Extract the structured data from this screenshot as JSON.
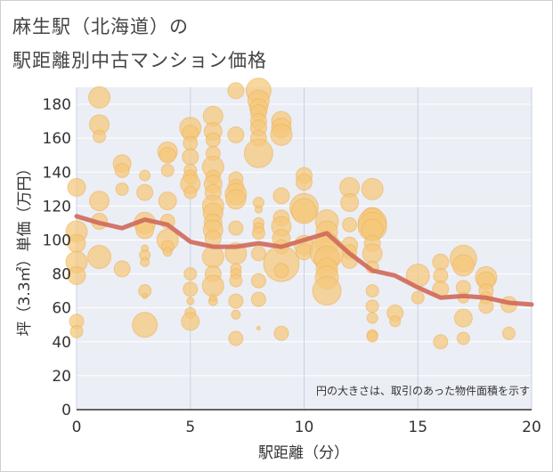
{
  "chart_data": {
    "type": "scatter",
    "title_line1": "麻生駅（北海道）の",
    "title_line2": "駅距離別中古マンション価格",
    "xlabel": "駅距離（分）",
    "ylabel": "坪（3.3㎡）単価（万円）",
    "note": "円の大きさは、取引のあった物件面積を示す",
    "xlim": [
      0,
      20
    ],
    "ylim": [
      0,
      190
    ],
    "xticks": [
      0,
      5,
      10,
      15,
      20
    ],
    "yticks": [
      0,
      20,
      40,
      60,
      80,
      100,
      120,
      140,
      160,
      180
    ],
    "grid": true,
    "bubble_color": "#f5c87a",
    "trend_color": "#d06b5b",
    "points": [
      {
        "x": 0,
        "y": 131,
        "r": 10
      },
      {
        "x": 0,
        "y": 105,
        "r": 12
      },
      {
        "x": 0,
        "y": 98,
        "r": 10
      },
      {
        "x": 0,
        "y": 87,
        "r": 12
      },
      {
        "x": 0,
        "y": 79,
        "r": 10
      },
      {
        "x": 0,
        "y": 52,
        "r": 8
      },
      {
        "x": 0,
        "y": 46,
        "r": 7
      },
      {
        "x": 1,
        "y": 184,
        "r": 12
      },
      {
        "x": 1,
        "y": 168,
        "r": 11
      },
      {
        "x": 1,
        "y": 161,
        "r": 7
      },
      {
        "x": 1,
        "y": 123,
        "r": 11
      },
      {
        "x": 1,
        "y": 111,
        "r": 9
      },
      {
        "x": 1,
        "y": 90,
        "r": 13
      },
      {
        "x": 2,
        "y": 145,
        "r": 10
      },
      {
        "x": 2,
        "y": 141,
        "r": 8
      },
      {
        "x": 2,
        "y": 130,
        "r": 7
      },
      {
        "x": 2,
        "y": 83,
        "r": 9
      },
      {
        "x": 3,
        "y": 138,
        "r": 6
      },
      {
        "x": 3,
        "y": 128,
        "r": 9
      },
      {
        "x": 3,
        "y": 110,
        "r": 12
      },
      {
        "x": 3,
        "y": 106,
        "r": 10
      },
      {
        "x": 3,
        "y": 95,
        "r": 4
      },
      {
        "x": 3,
        "y": 91,
        "r": 6
      },
      {
        "x": 3,
        "y": 87,
        "r": 5
      },
      {
        "x": 3,
        "y": 70,
        "r": 7
      },
      {
        "x": 3,
        "y": 67,
        "r": 3
      },
      {
        "x": 3,
        "y": 50,
        "r": 14
      },
      {
        "x": 4,
        "y": 152,
        "r": 11
      },
      {
        "x": 4,
        "y": 150,
        "r": 9
      },
      {
        "x": 4,
        "y": 141,
        "r": 7
      },
      {
        "x": 4,
        "y": 123,
        "r": 10
      },
      {
        "x": 4,
        "y": 111,
        "r": 8
      },
      {
        "x": 4,
        "y": 100,
        "r": 12
      },
      {
        "x": 4,
        "y": 96,
        "r": 7
      },
      {
        "x": 4,
        "y": 93,
        "r": 5
      },
      {
        "x": 5,
        "y": 166,
        "r": 12
      },
      {
        "x": 5,
        "y": 163,
        "r": 9
      },
      {
        "x": 5,
        "y": 157,
        "r": 8
      },
      {
        "x": 5,
        "y": 149,
        "r": 9
      },
      {
        "x": 5,
        "y": 141,
        "r": 7
      },
      {
        "x": 5,
        "y": 137,
        "r": 8
      },
      {
        "x": 5,
        "y": 133,
        "r": 11
      },
      {
        "x": 5,
        "y": 128,
        "r": 7
      },
      {
        "x": 5,
        "y": 80,
        "r": 7
      },
      {
        "x": 5,
        "y": 71,
        "r": 8
      },
      {
        "x": 5,
        "y": 64,
        "r": 4
      },
      {
        "x": 5,
        "y": 57,
        "r": 6
      },
      {
        "x": 5,
        "y": 52,
        "r": 10
      },
      {
        "x": 6,
        "y": 173,
        "r": 11
      },
      {
        "x": 6,
        "y": 164,
        "r": 10
      },
      {
        "x": 6,
        "y": 159,
        "r": 8
      },
      {
        "x": 6,
        "y": 151,
        "r": 8
      },
      {
        "x": 6,
        "y": 143,
        "r": 12
      },
      {
        "x": 6,
        "y": 137,
        "r": 8
      },
      {
        "x": 6,
        "y": 133,
        "r": 10
      },
      {
        "x": 6,
        "y": 128,
        "r": 9
      },
      {
        "x": 6,
        "y": 120,
        "r": 12
      },
      {
        "x": 6,
        "y": 116,
        "r": 11
      },
      {
        "x": 6,
        "y": 110,
        "r": 10
      },
      {
        "x": 6,
        "y": 106,
        "r": 11
      },
      {
        "x": 6,
        "y": 101,
        "r": 9
      },
      {
        "x": 6,
        "y": 90,
        "r": 12
      },
      {
        "x": 6,
        "y": 80,
        "r": 9
      },
      {
        "x": 6,
        "y": 73,
        "r": 12
      },
      {
        "x": 6,
        "y": 64,
        "r": 5
      },
      {
        "x": 6,
        "y": 66,
        "r": 4
      },
      {
        "x": 7,
        "y": 188,
        "r": 9
      },
      {
        "x": 7,
        "y": 162,
        "r": 9
      },
      {
        "x": 7,
        "y": 136,
        "r": 8
      },
      {
        "x": 7,
        "y": 131,
        "r": 9
      },
      {
        "x": 7,
        "y": 127,
        "r": 12
      },
      {
        "x": 7,
        "y": 124,
        "r": 11
      },
      {
        "x": 7,
        "y": 107,
        "r": 8
      },
      {
        "x": 7,
        "y": 92,
        "r": 12
      },
      {
        "x": 7,
        "y": 83,
        "r": 6
      },
      {
        "x": 7,
        "y": 80,
        "r": 6
      },
      {
        "x": 7,
        "y": 76,
        "r": 7
      },
      {
        "x": 7,
        "y": 64,
        "r": 8
      },
      {
        "x": 7,
        "y": 56,
        "r": 5
      },
      {
        "x": 7,
        "y": 42,
        "r": 8
      },
      {
        "x": 8,
        "y": 188,
        "r": 14
      },
      {
        "x": 8,
        "y": 182,
        "r": 12
      },
      {
        "x": 8,
        "y": 178,
        "r": 10
      },
      {
        "x": 8,
        "y": 175,
        "r": 9
      },
      {
        "x": 8,
        "y": 170,
        "r": 9
      },
      {
        "x": 8,
        "y": 166,
        "r": 9
      },
      {
        "x": 8,
        "y": 160,
        "r": 9
      },
      {
        "x": 8,
        "y": 151,
        "r": 16
      },
      {
        "x": 8,
        "y": 122,
        "r": 6
      },
      {
        "x": 8,
        "y": 118,
        "r": 4
      },
      {
        "x": 8,
        "y": 110,
        "r": 6
      },
      {
        "x": 8,
        "y": 107,
        "r": 6
      },
      {
        "x": 8,
        "y": 104,
        "r": 7
      },
      {
        "x": 8,
        "y": 92,
        "r": 8
      },
      {
        "x": 8,
        "y": 76,
        "r": 8
      },
      {
        "x": 8,
        "y": 65,
        "r": 8
      },
      {
        "x": 8,
        "y": 48,
        "r": 2
      },
      {
        "x": 9,
        "y": 170,
        "r": 11
      },
      {
        "x": 9,
        "y": 166,
        "r": 11
      },
      {
        "x": 9,
        "y": 162,
        "r": 12
      },
      {
        "x": 9,
        "y": 126,
        "r": 9
      },
      {
        "x": 9,
        "y": 113,
        "r": 9
      },
      {
        "x": 9,
        "y": 108,
        "r": 11
      },
      {
        "x": 9,
        "y": 101,
        "r": 10
      },
      {
        "x": 9,
        "y": 96,
        "r": 8
      },
      {
        "x": 9,
        "y": 86,
        "r": 20
      },
      {
        "x": 9,
        "y": 82,
        "r": 8
      },
      {
        "x": 9,
        "y": 45,
        "r": 8
      },
      {
        "x": 10,
        "y": 138,
        "r": 9
      },
      {
        "x": 10,
        "y": 134,
        "r": 9
      },
      {
        "x": 10,
        "y": 119,
        "r": 16
      },
      {
        "x": 10,
        "y": 117,
        "r": 14
      },
      {
        "x": 10,
        "y": 97,
        "r": 11
      },
      {
        "x": 10,
        "y": 93,
        "r": 9
      },
      {
        "x": 11,
        "y": 111,
        "r": 13
      },
      {
        "x": 11,
        "y": 105,
        "r": 12
      },
      {
        "x": 11,
        "y": 98,
        "r": 13
      },
      {
        "x": 11,
        "y": 93,
        "r": 19
      },
      {
        "x": 11,
        "y": 89,
        "r": 14
      },
      {
        "x": 11,
        "y": 83,
        "r": 12
      },
      {
        "x": 11,
        "y": 78,
        "r": 13
      },
      {
        "x": 11,
        "y": 70,
        "r": 16
      },
      {
        "x": 12,
        "y": 131,
        "r": 11
      },
      {
        "x": 12,
        "y": 122,
        "r": 10
      },
      {
        "x": 12,
        "y": 109,
        "r": 8
      },
      {
        "x": 12,
        "y": 97,
        "r": 9
      },
      {
        "x": 12,
        "y": 93,
        "r": 8
      },
      {
        "x": 12,
        "y": 88,
        "r": 9
      },
      {
        "x": 13,
        "y": 130,
        "r": 12
      },
      {
        "x": 13,
        "y": 113,
        "r": 12
      },
      {
        "x": 13,
        "y": 110,
        "r": 16
      },
      {
        "x": 13,
        "y": 108,
        "r": 16
      },
      {
        "x": 13,
        "y": 106,
        "r": 12
      },
      {
        "x": 13,
        "y": 98,
        "r": 9
      },
      {
        "x": 13,
        "y": 92,
        "r": 11
      },
      {
        "x": 13,
        "y": 84,
        "r": 7
      },
      {
        "x": 13,
        "y": 70,
        "r": 7
      },
      {
        "x": 13,
        "y": 61,
        "r": 7
      },
      {
        "x": 13,
        "y": 54,
        "r": 6
      },
      {
        "x": 13,
        "y": 44,
        "r": 6
      },
      {
        "x": 13,
        "y": 43,
        "r": 6
      },
      {
        "x": 14,
        "y": 57,
        "r": 9
      },
      {
        "x": 14,
        "y": 52,
        "r": 6
      },
      {
        "x": 15,
        "y": 79,
        "r": 13
      },
      {
        "x": 15,
        "y": 66,
        "r": 7
      },
      {
        "x": 16,
        "y": 87,
        "r": 9
      },
      {
        "x": 16,
        "y": 79,
        "r": 8
      },
      {
        "x": 16,
        "y": 71,
        "r": 9
      },
      {
        "x": 16,
        "y": 40,
        "r": 8
      },
      {
        "x": 17,
        "y": 89,
        "r": 15
      },
      {
        "x": 17,
        "y": 85,
        "r": 12
      },
      {
        "x": 17,
        "y": 72,
        "r": 8
      },
      {
        "x": 17,
        "y": 66,
        "r": 6
      },
      {
        "x": 17,
        "y": 54,
        "r": 10
      },
      {
        "x": 17,
        "y": 42,
        "r": 7
      },
      {
        "x": 18,
        "y": 78,
        "r": 12
      },
      {
        "x": 18,
        "y": 76,
        "r": 10
      },
      {
        "x": 18,
        "y": 70,
        "r": 8
      },
      {
        "x": 18,
        "y": 66,
        "r": 7
      },
      {
        "x": 18,
        "y": 61,
        "r": 8
      },
      {
        "x": 19,
        "y": 62,
        "r": 9
      },
      {
        "x": 19,
        "y": 45,
        "r": 7
      }
    ],
    "trend": {
      "x": [
        0,
        1,
        2,
        3,
        4,
        5,
        6,
        7,
        8,
        9,
        10,
        11,
        12,
        13,
        14,
        15,
        16,
        17,
        18,
        19,
        20
      ],
      "y": [
        114,
        110,
        107,
        112,
        109,
        99,
        96,
        96,
        98,
        96,
        100,
        104,
        92,
        82,
        79,
        72,
        66,
        67,
        66,
        63,
        62
      ]
    }
  }
}
